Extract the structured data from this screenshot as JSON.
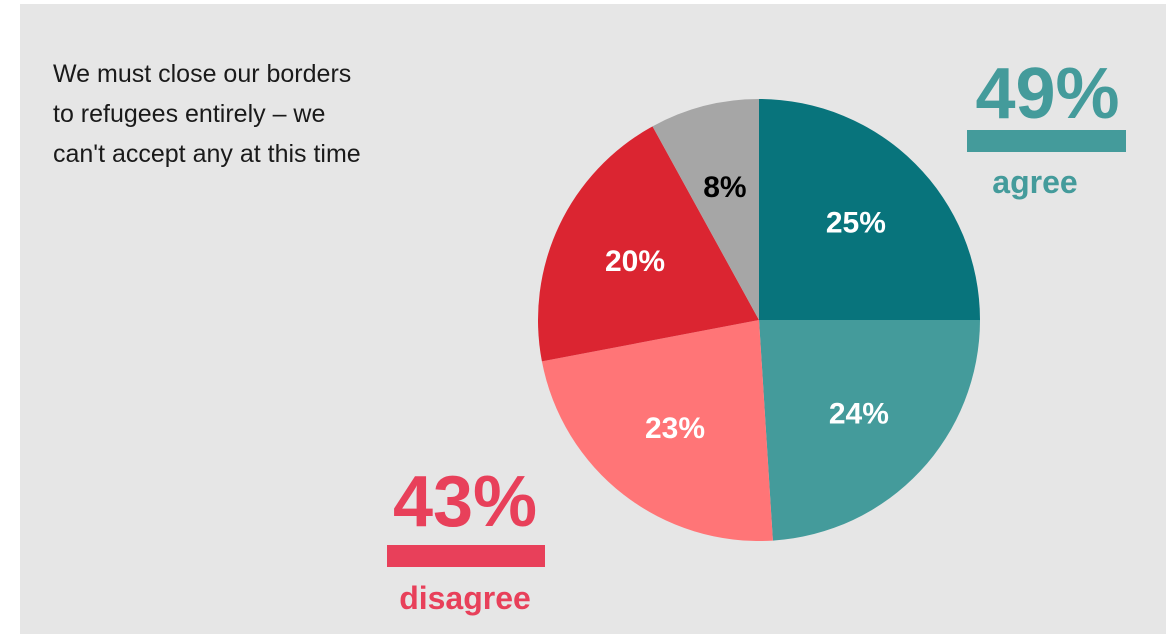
{
  "statement": {
    "lines": [
      "We must close our borders",
      "to refugees entirely – we",
      "can't accept any at this time"
    ]
  },
  "groups": {
    "agree": {
      "value": "49%",
      "word": "agree",
      "color": "#449b9b"
    },
    "disagree": {
      "value": "43%",
      "word": "disagree",
      "color": "#e8405a"
    }
  },
  "chart_data": {
    "type": "pie",
    "title": "",
    "slices": [
      {
        "label": "25%",
        "value": 25,
        "color": "#08747c",
        "label_color": "#ffffff"
      },
      {
        "label": "24%",
        "value": 24,
        "color": "#449b9b",
        "label_color": "#ffffff"
      },
      {
        "label": "23%",
        "value": 23,
        "color": "#ff7577",
        "label_color": "#ffffff"
      },
      {
        "label": "20%",
        "value": 20,
        "color": "#db2531",
        "label_color": "#ffffff"
      },
      {
        "label": "8%",
        "value": 8,
        "color": "#a6a6a6",
        "label_color": "#000000"
      }
    ]
  }
}
